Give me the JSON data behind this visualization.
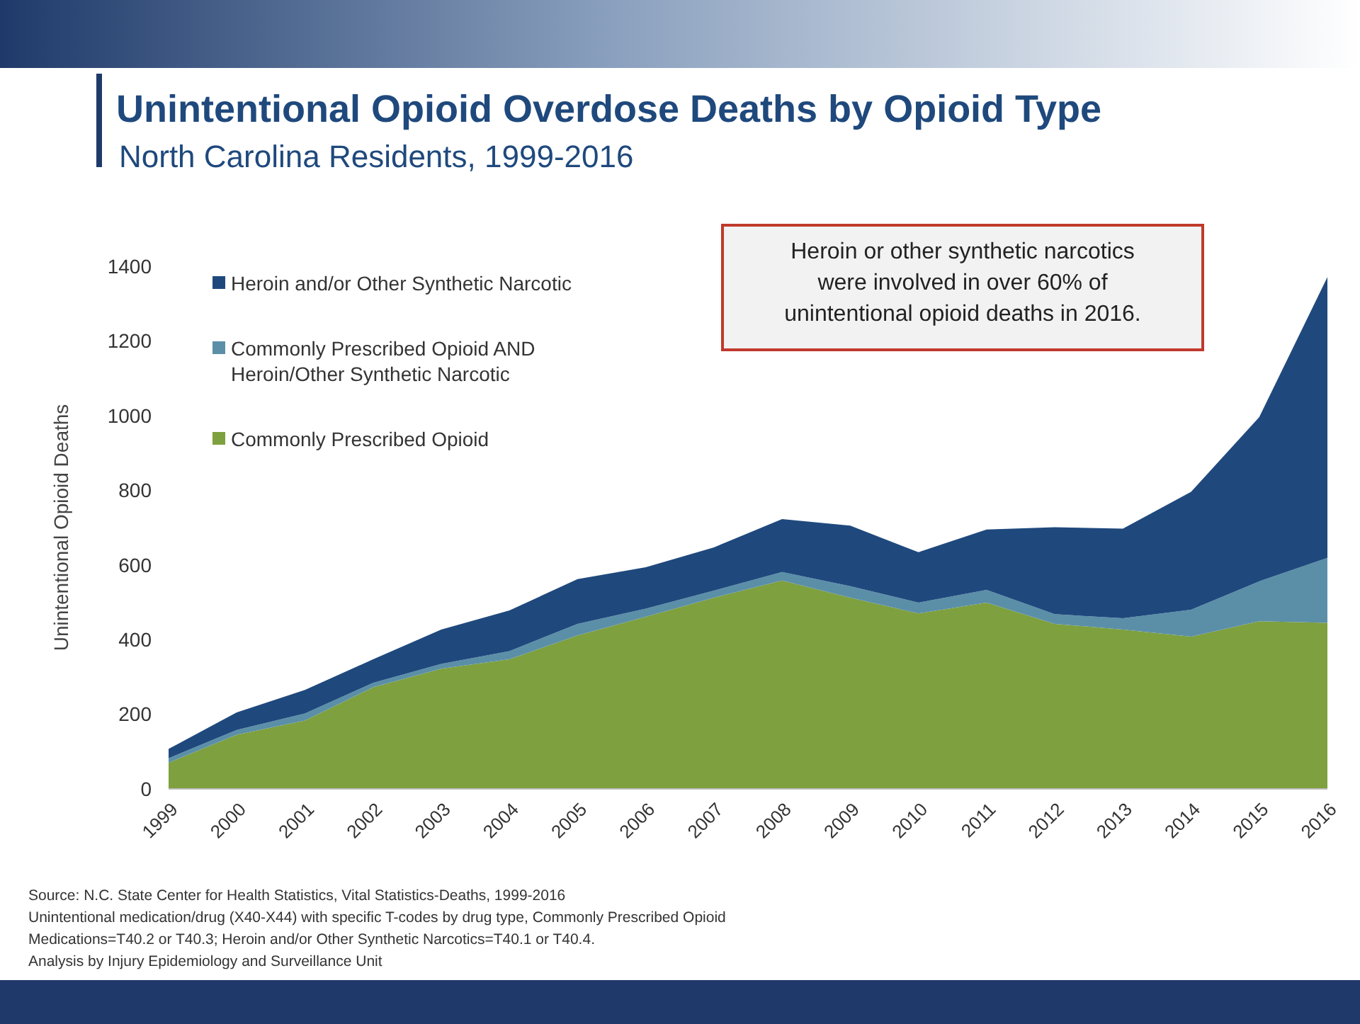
{
  "chart_data": {
    "type": "area",
    "stacked": true,
    "title": "Unintentional Opioid Overdose Deaths by Opioid Type",
    "subtitle": "North Carolina Residents, 1999-2016",
    "ylabel": "Unintentional Opioid Deaths",
    "categories": [
      "1999",
      "2000",
      "2001",
      "2002",
      "2003",
      "2004",
      "2005",
      "2006",
      "2007",
      "2008",
      "2009",
      "2010",
      "2011",
      "2012",
      "2013",
      "2014",
      "2015",
      "2016"
    ],
    "series": [
      {
        "name": "Commonly Prescribed Opioid",
        "color": "#7ea03e",
        "values": [
          70,
          145,
          183,
          272,
          322,
          347,
          411,
          461,
          512,
          558,
          512,
          470,
          499,
          442,
          427,
          408,
          449,
          445
        ]
      },
      {
        "name": "Commonly Prescribed Opioid AND Heroin/Other Synthetic Narcotic",
        "color": "#5b8fa8",
        "values": [
          12,
          13,
          19,
          12,
          13,
          22,
          31,
          22,
          19,
          23,
          31,
          29,
          34,
          26,
          30,
          72,
          107,
          174
        ]
      },
      {
        "name": "Heroin and/or Other Synthetic Narcotic",
        "color": "#1f497d",
        "values": [
          25,
          47,
          63,
          63,
          92,
          109,
          120,
          111,
          116,
          142,
          162,
          135,
          162,
          233,
          240,
          316,
          440,
          752
        ]
      }
    ],
    "ylim": [
      0,
      1400
    ],
    "yticks": [
      0,
      200,
      400,
      600,
      800,
      1000,
      1200,
      1400
    ],
    "grid": false,
    "legend": "top left",
    "annotations": [
      "Heroin or other synthetic narcotics were involved in over 60% of unintentional opioid deaths in 2016.",
      "Source: N.C. State Center for Health Statistics, Vital Statistics-Deaths, 1999-2016",
      "Unintentional medication/drug (X40-X44) with specific T-codes by drug type, Commonly Prescribed Opioid Medications=T40.2 or T40.3; Heroin and/or Other Synthetic Narcotics=T40.1 or T40.4.",
      "Analysis by Injury Epidemiology and Surveillance Unit"
    ]
  }
}
